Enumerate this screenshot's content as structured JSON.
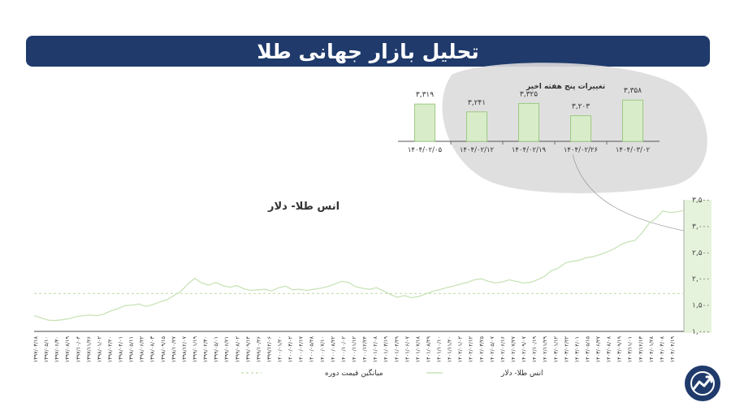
{
  "banner": {
    "title": "تحلیل بازار جهانی طلا"
  },
  "colors": {
    "banner_bg": "#1f3a6b",
    "line": "#c9e3b8",
    "average_line": "#c9e3b8",
    "bar_fill": "#d9ecc9",
    "bar_stroke": "#8cc36b",
    "bubble": "#dcdcdc",
    "axis_highlight": "#d6ecc7",
    "logo": "#1f3a6b"
  },
  "logo": {
    "icon": "trend-chart-logo-icon"
  },
  "chart_data": [
    {
      "type": "line",
      "title": "انس طلا- دلار",
      "legend": [
        {
          "label": "انس طلا- دلار",
          "style": "solid"
        },
        {
          "label": "میانگین قیمت دوره",
          "style": "dashed"
        }
      ],
      "legend_placement": "bottom",
      "ylim": [
        1000,
        3500
      ],
      "yticks": [
        1000,
        1500,
        2000,
        2500,
        3000,
        3500
      ],
      "ytick_labels": [
        "۱,۰۰۰",
        "۱,۵۰۰",
        "۲,۰۰۰",
        "۲,۵۰۰",
        "۳,۰۰۰",
        "۳,۵۰۰"
      ],
      "average_value": 1720,
      "xtick_labels": [
        "۱۳۹۷/۰۳/۱۸",
        "۱۳۹۷/۰۵/۱۰",
        "۱۳۹۷/۰۶/۳۰",
        "۱۳۹۷/۰۸/۱۹",
        "۱۳۹۷/۱۰/۰۴",
        "۱۳۹۷/۱۱/۲۶",
        "۱۳۹۸/۰۱/۰۲",
        "۱۳۹۸/۰۲/۲۰",
        "۱۳۹۸/۰۴/۰۱",
        "۱۳۹۸/۰۵/۱۱",
        "۱۳۹۸/۰۶/۲۲",
        "۱۳۹۸/۰۸/۰۳",
        "۱۳۹۸/۰۹/۱۵",
        "۱۳۹۸/۱۰/۲۷",
        "۱۳۹۸/۱۲/۰۷",
        "۱۳۹۹/۰۱/۱۹",
        "۱۳۹۹/۰۲/۳۰",
        "۱۳۹۹/۰۵/۰۱",
        "۱۳۹۹/۰۶/۲۱",
        "۱۳۹۹/۰۸/۰۲",
        "۱۳۹۹/۰۹/۱۴",
        "۱۳۹۹/۱۰/۲۶",
        "۱۳۹۹/۱۲/۰۶",
        "۱۴۰۰/۰۱/۲۰",
        "۱۴۰۰/۰۳/۰۲",
        "۱۴۰۰/۰۴/۱۷",
        "۱۴۰۰/۰۵/۲۸",
        "۱۴۰۰/۰۷/۱۰",
        "۱۴۰۰/۰۸/۲۲",
        "۱۴۰۰/۱۰/۰۲",
        "۱۴۰۰/۱۱/۱۲",
        "۱۴۰۰/۱۲/۲۴",
        "۱۴۰۱/۰۲/۰۸",
        "۱۴۰۱/۰۳/۱۹",
        "۱۴۰۱/۰۴/۲۹",
        "۱۴۰۱/۰۶/۰۷",
        "۱۴۰۱/۰۷/۱۸",
        "۱۴۰۱/۰۸/۲۹",
        "۱۴۰۱/۱۰/۱۰",
        "۱۴۰۱/۱۱/۲۰",
        "۱۴۰۲/۰۱/۰۲",
        "۱۴۰۲/۰۲/۱۲",
        "۱۴۰۲/۰۳/۲۵",
        "۱۴۰۲/۰۵/۰۷",
        "۱۴۰۲/۰۶/۱۶",
        "۱۴۰۲/۰۷/۲۷",
        "۱۴۰۲/۰۹/۰۷",
        "۱۴۰۲/۱۰/۱۹",
        "۱۴۰۲/۱۱/۲۹",
        "۱۴۰۳/۰۱/۱۲",
        "۱۴۰۳/۰۲/۲۲",
        "۱۴۰۳/۰۴/۰۱",
        "۱۴۰۳/۰۵/۱۵",
        "۱۴۰۳/۰۶/۲۷",
        "۱۴۰۳/۰۸/۰۸",
        "۱۴۰۳/۰۹/۱۹",
        "۱۴۰۳/۱۱/۰۱",
        "۱۴۰۳/۱۲/۱۳",
        "۱۴۰۴/۰۱/۲۸",
        "۱۴۰۴/۰۳/۰۸",
        "۱۴۰۴/۰۴/۱۹"
      ],
      "series": [
        {
          "name": "انس طلا- دلار",
          "values": [
            1300,
            1260,
            1215,
            1205,
            1220,
            1240,
            1280,
            1300,
            1310,
            1300,
            1330,
            1390,
            1430,
            1490,
            1500,
            1520,
            1475,
            1510,
            1560,
            1600,
            1680,
            1760,
            1900,
            2010,
            1920,
            1880,
            1930,
            1870,
            1840,
            1870,
            1810,
            1780,
            1790,
            1800,
            1770,
            1830,
            1860,
            1790,
            1800,
            1780,
            1800,
            1820,
            1850,
            1900,
            1950,
            1930,
            1850,
            1820,
            1800,
            1830,
            1770,
            1700,
            1650,
            1680,
            1640,
            1660,
            1710,
            1760,
            1790,
            1830,
            1860,
            1900,
            1930,
            1980,
            2000,
            1950,
            1920,
            1940,
            1980,
            1950,
            1920,
            1930,
            1980,
            2040,
            2150,
            2200,
            2300,
            2330,
            2350,
            2400,
            2420,
            2460,
            2510,
            2570,
            2650,
            2700,
            2730,
            2870,
            3050,
            3150,
            3290,
            3260,
            3270,
            3300
          ]
        }
      ]
    },
    {
      "type": "bar",
      "title": "تغییرات پنج هفته اخیر",
      "categories": [
        "۱۴۰۴/۰۲/۰۵",
        "۱۴۰۴/۰۲/۱۲",
        "۱۴۰۴/۰۲/۱۹",
        "۱۴۰۴/۰۲/۲۶",
        "۱۴۰۴/۰۳/۰۲"
      ],
      "value_labels": [
        "۳,۳۱۹",
        "۳,۲۴۱",
        "۳,۳۲۵",
        "۳,۲۰۳",
        "۳,۳۵۸"
      ],
      "values": [
        3319,
        3241,
        3325,
        3203,
        3358
      ],
      "ylim": [
        2950,
        3400
      ]
    }
  ]
}
